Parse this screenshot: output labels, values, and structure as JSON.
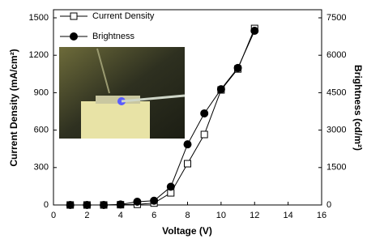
{
  "chart_data": {
    "type": "line",
    "x": [
      1,
      2,
      3,
      4,
      5,
      6,
      7,
      8,
      9,
      10,
      11,
      12
    ],
    "xlabel": "Voltage (V)",
    "ylabel": "Current Density (mA/cm²)",
    "y2label": "Brightness (cd/m²)",
    "xlim": [
      0,
      16
    ],
    "xticks": [
      0,
      2,
      4,
      6,
      8,
      10,
      12,
      14,
      16
    ],
    "ylim": [
      0,
      1500
    ],
    "yticks": [
      0,
      300,
      600,
      900,
      1200,
      1500
    ],
    "y2lim": [
      0,
      7500
    ],
    "y2ticks": [
      0,
      1500,
      3000,
      4500,
      6000,
      7500
    ],
    "legend": "upper left",
    "series": [
      {
        "name": "Current Density",
        "color": "#000000",
        "marker": "square-open",
        "axis": "y",
        "values": [
          0,
          0,
          0,
          2,
          5,
          15,
          97,
          331,
          565,
          922,
          1090,
          1415
        ]
      },
      {
        "name": "Brightness",
        "color": "#000000",
        "marker": "circle",
        "axis": "y2",
        "values": [
          0,
          0,
          0,
          20,
          130,
          170,
          730,
          2430,
          3670,
          4640,
          5490,
          6980
        ]
      }
    ]
  }
}
